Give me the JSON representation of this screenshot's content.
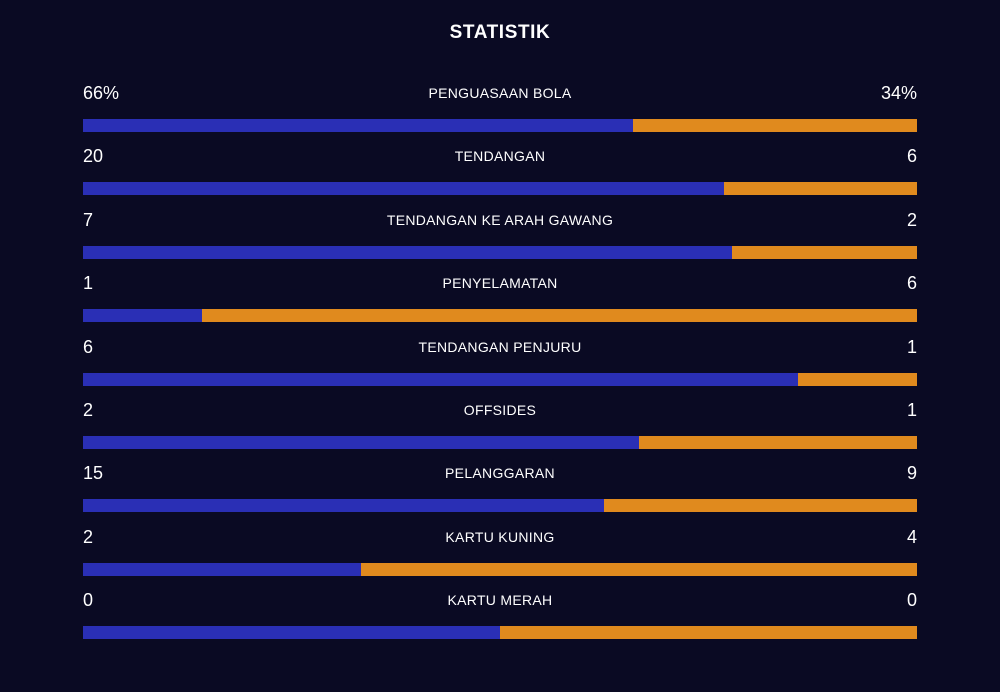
{
  "title": "STATISTIK",
  "colors": {
    "background": "#0a0a23",
    "home_bar": "#2a2fb5",
    "away_bar": "#e08a1e",
    "text": "#ffffff"
  },
  "stats": [
    {
      "label": "PENGUASAAN BOLA",
      "home": "66%",
      "away": "34%",
      "home_share": 0.66
    },
    {
      "label": "TENDANGAN",
      "home": "20",
      "away": "6",
      "home_share": 0.769
    },
    {
      "label": "TENDANGAN KE ARAH GAWANG",
      "home": "7",
      "away": "2",
      "home_share": 0.778
    },
    {
      "label": "PENYELAMATAN",
      "home": "1",
      "away": "6",
      "home_share": 0.143
    },
    {
      "label": "TENDANGAN PENJURU",
      "home": "6",
      "away": "1",
      "home_share": 0.857
    },
    {
      "label": "OFFSIDES",
      "home": "2",
      "away": "1",
      "home_share": 0.667
    },
    {
      "label": "PELANGGARAN",
      "home": "15",
      "away": "9",
      "home_share": 0.625
    },
    {
      "label": "KARTU KUNING",
      "home": "2",
      "away": "4",
      "home_share": 0.333
    },
    {
      "label": "KARTU MERAH",
      "home": "0",
      "away": "0",
      "home_share": 0.5
    }
  ]
}
